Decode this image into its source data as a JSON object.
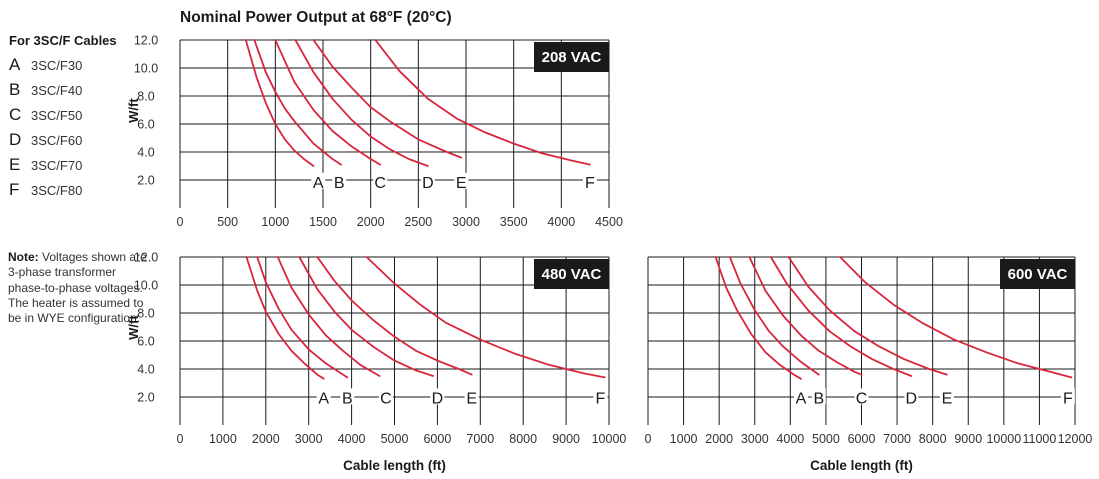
{
  "title": "Nominal Power Output at 68°F (20°C)",
  "legend": {
    "title": "For 3SC/F Cables",
    "items": [
      {
        "letter": "A",
        "label": "3SC/F30"
      },
      {
        "letter": "B",
        "label": "3SC/F40"
      },
      {
        "letter": "C",
        "label": "3SC/F50"
      },
      {
        "letter": "D",
        "label": "3SC/F60"
      },
      {
        "letter": "E",
        "label": "3SC/F70"
      },
      {
        "letter": "F",
        "label": "3SC/F80"
      }
    ]
  },
  "note": {
    "label": "Note:",
    "text": "Voltages shown are 3-phase transformer phase-to-phase voltages. The heater is assumed to be in WYE configuration."
  },
  "colors": {
    "curve": "#d7263d",
    "grid": "#1a1a1a",
    "badge_bg": "#1a1a1a",
    "badge_text": "#ffffff"
  },
  "chart_data": [
    {
      "type": "line",
      "badge": "208 VAC",
      "ylabel": "W/ft",
      "xlabel": "",
      "xlim": [
        0,
        4500
      ],
      "ylim": [
        0,
        12
      ],
      "xticks": [
        0,
        500,
        1000,
        1500,
        2000,
        2500,
        3000,
        3500,
        4000,
        4500
      ],
      "yticks": [
        2,
        4,
        6,
        8,
        10,
        12
      ],
      "ytick_labels": [
        "2.0",
        "4.0",
        "6.0",
        "8.0",
        "10.0",
        "12.0"
      ],
      "grid": true,
      "series": [
        {
          "name": "A",
          "x": [
            690,
            800,
            900,
            1000,
            1100,
            1200,
            1300,
            1400
          ],
          "y": [
            12.0,
            9.4,
            7.5,
            6.0,
            4.9,
            4.1,
            3.5,
            3.0
          ]
        },
        {
          "name": "B",
          "x": [
            780,
            900,
            1000,
            1100,
            1200,
            1400,
            1600,
            1690
          ],
          "y": [
            12.0,
            9.7,
            8.3,
            7.1,
            6.2,
            4.6,
            3.5,
            3.1
          ]
        },
        {
          "name": "C",
          "x": [
            1000,
            1200,
            1400,
            1600,
            1800,
            2000,
            2100
          ],
          "y": [
            12.0,
            9.0,
            7.0,
            5.5,
            4.4,
            3.5,
            3.1
          ]
        },
        {
          "name": "D",
          "x": [
            1210,
            1400,
            1600,
            1800,
            2000,
            2200,
            2400,
            2600
          ],
          "y": [
            12.0,
            9.7,
            7.8,
            6.3,
            5.1,
            4.2,
            3.5,
            3.0
          ]
        },
        {
          "name": "E",
          "x": [
            1400,
            1600,
            1800,
            2000,
            2200,
            2500,
            2800,
            2950
          ],
          "y": [
            12.0,
            10.1,
            8.6,
            7.2,
            6.2,
            4.9,
            4.0,
            3.6
          ]
        },
        {
          "name": "F",
          "x": [
            2050,
            2300,
            2600,
            2900,
            3200,
            3500,
            3800,
            4100,
            4300
          ],
          "y": [
            12.0,
            9.8,
            7.8,
            6.4,
            5.4,
            4.6,
            3.9,
            3.4,
            3.1
          ]
        }
      ],
      "curve_labels": [
        {
          "text": "A",
          "x": 1450,
          "y": 1.8
        },
        {
          "text": "B",
          "x": 1670,
          "y": 1.8
        },
        {
          "text": "C",
          "x": 2100,
          "y": 1.8
        },
        {
          "text": "D",
          "x": 2600,
          "y": 1.8
        },
        {
          "text": "E",
          "x": 2950,
          "y": 1.8
        },
        {
          "text": "F",
          "x": 4300,
          "y": 1.8
        }
      ]
    },
    {
      "type": "line",
      "badge": "480 VAC",
      "ylabel": "W/ft",
      "xlabel": "Cable length (ft)",
      "xlim": [
        0,
        10000
      ],
      "ylim": [
        0,
        12
      ],
      "xticks": [
        0,
        1000,
        2000,
        3000,
        4000,
        5000,
        6000,
        7000,
        8000,
        9000,
        10000
      ],
      "yticks": [
        2,
        4,
        6,
        8,
        10,
        12
      ],
      "ytick_labels": [
        "2.0",
        "4.0",
        "6.0",
        "8.0",
        "10.0",
        "12.0"
      ],
      "grid": true,
      "series": [
        {
          "name": "A",
          "x": [
            1550,
            1800,
            2000,
            2300,
            2600,
            2900,
            3200,
            3350
          ],
          "y": [
            12.0,
            9.6,
            8.1,
            6.5,
            5.3,
            4.4,
            3.6,
            3.3
          ]
        },
        {
          "name": "B",
          "x": [
            1800,
            2000,
            2300,
            2600,
            3000,
            3400,
            3800,
            3900
          ],
          "y": [
            12.0,
            10.2,
            8.3,
            6.8,
            5.4,
            4.4,
            3.6,
            3.4
          ]
        },
        {
          "name": "C",
          "x": [
            2280,
            2600,
            3000,
            3400,
            3800,
            4200,
            4650
          ],
          "y": [
            12.0,
            9.8,
            7.9,
            6.4,
            5.3,
            4.3,
            3.5
          ]
        },
        {
          "name": "D",
          "x": [
            2780,
            3200,
            3600,
            4000,
            4500,
            5000,
            5500,
            5900
          ],
          "y": [
            12.0,
            9.7,
            8.1,
            6.8,
            5.6,
            4.6,
            3.9,
            3.5
          ]
        },
        {
          "name": "E",
          "x": [
            3200,
            3600,
            4000,
            4500,
            5000,
            5500,
            6000,
            6500,
            6800
          ],
          "y": [
            12.0,
            10.3,
            8.9,
            7.5,
            6.3,
            5.3,
            4.6,
            4.0,
            3.6
          ]
        },
        {
          "name": "F",
          "x": [
            4350,
            5000,
            5600,
            6200,
            7000,
            7800,
            8600,
            9400,
            9900
          ],
          "y": [
            12.0,
            10.1,
            8.6,
            7.3,
            6.1,
            5.1,
            4.3,
            3.7,
            3.4
          ]
        }
      ],
      "curve_labels": [
        {
          "text": "A",
          "x": 3350,
          "y": 1.9
        },
        {
          "text": "B",
          "x": 3900,
          "y": 1.9
        },
        {
          "text": "C",
          "x": 4800,
          "y": 1.9
        },
        {
          "text": "D",
          "x": 6000,
          "y": 1.9
        },
        {
          "text": "E",
          "x": 6800,
          "y": 1.9
        },
        {
          "text": "F",
          "x": 9800,
          "y": 1.9
        }
      ]
    },
    {
      "type": "line",
      "badge": "600 VAC",
      "ylabel": "",
      "xlabel": "Cable length (ft)",
      "xlim": [
        0,
        12000
      ],
      "ylim": [
        0,
        12
      ],
      "xticks": [
        0,
        1000,
        2000,
        3000,
        4000,
        5000,
        6000,
        7000,
        8000,
        9000,
        10000,
        11000,
        12000
      ],
      "yticks": [
        2,
        4,
        6,
        8,
        10,
        12
      ],
      "ytick_labels": [
        "2.0",
        "4.0",
        "6.0",
        "8.0",
        "10.0",
        "12.0"
      ],
      "grid": true,
      "series": [
        {
          "name": "A",
          "x": [
            1900,
            2200,
            2500,
            2900,
            3300,
            3700,
            4100,
            4300
          ],
          "y": [
            12.0,
            9.8,
            8.2,
            6.5,
            5.2,
            4.3,
            3.6,
            3.3
          ]
        },
        {
          "name": "B",
          "x": [
            2300,
            2600,
            3000,
            3400,
            3800,
            4300,
            4800
          ],
          "y": [
            12.0,
            10.1,
            8.2,
            6.7,
            5.6,
            4.5,
            3.6
          ]
        },
        {
          "name": "C",
          "x": [
            2850,
            3300,
            3800,
            4300,
            4800,
            5300,
            5800,
            6000
          ],
          "y": [
            12.0,
            9.6,
            7.8,
            6.4,
            5.3,
            4.5,
            3.8,
            3.6
          ]
        },
        {
          "name": "D",
          "x": [
            3450,
            3900,
            4500,
            5100,
            5700,
            6300,
            6900,
            7400
          ],
          "y": [
            12.0,
            10.1,
            8.2,
            6.7,
            5.6,
            4.7,
            4.0,
            3.5
          ]
        },
        {
          "name": "E",
          "x": [
            3950,
            4500,
            5100,
            5800,
            6500,
            7200,
            7900,
            8400
          ],
          "y": [
            12.0,
            9.9,
            8.2,
            6.7,
            5.6,
            4.7,
            4.0,
            3.6
          ]
        },
        {
          "name": "F",
          "x": [
            5400,
            6100,
            6900,
            7700,
            8600,
            9500,
            10400,
            11300,
            11900
          ],
          "y": [
            12.0,
            10.2,
            8.6,
            7.3,
            6.1,
            5.2,
            4.4,
            3.8,
            3.4
          ]
        }
      ],
      "curve_labels": [
        {
          "text": "A",
          "x": 4300,
          "y": 1.9
        },
        {
          "text": "B",
          "x": 4800,
          "y": 1.9
        },
        {
          "text": "C",
          "x": 6000,
          "y": 1.9
        },
        {
          "text": "D",
          "x": 7400,
          "y": 1.9
        },
        {
          "text": "E",
          "x": 8400,
          "y": 1.9
        },
        {
          "text": "F",
          "x": 11800,
          "y": 1.9
        }
      ]
    }
  ]
}
